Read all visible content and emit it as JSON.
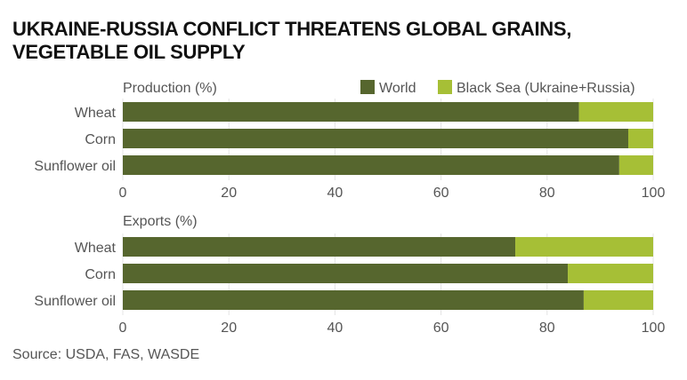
{
  "title_line1": "UKRAINE-RUSSIA CONFLICT THREATENS GLOBAL GRAINS,",
  "title_line2": "VEGETABLE OIL SUPPLY",
  "source": "Source: USDA, FAS, WASDE",
  "colors": {
    "World": "#56662e",
    "Black Sea (Ukraine+Russia)": "#a6bf36"
  },
  "chart_data": [
    {
      "type": "bar",
      "orientation": "horizontal",
      "stacked": true,
      "title": "Production (%)",
      "categories": [
        "Wheat",
        "Corn",
        "Sunflower oil"
      ],
      "series": [
        {
          "name": "World",
          "values": [
            86.0,
            95.3,
            93.6
          ]
        },
        {
          "name": "Black Sea (Ukraine+Russia)",
          "values": [
            14.0,
            4.7,
            6.4
          ]
        }
      ],
      "xlim": [
        0,
        100
      ],
      "xticks": [
        "0",
        "20",
        "40",
        "60",
        "80",
        "100"
      ],
      "grid": true,
      "legend": "top-right"
    },
    {
      "type": "bar",
      "orientation": "horizontal",
      "stacked": true,
      "title": "Exports (%)",
      "categories": [
        "Wheat",
        "Corn",
        "Sunflower oil"
      ],
      "series": [
        {
          "name": "World",
          "values": [
            74.0,
            83.9,
            86.9
          ]
        },
        {
          "name": "Black Sea (Ukraine+Russia)",
          "values": [
            26.0,
            16.1,
            13.1
          ]
        }
      ],
      "xlim": [
        0,
        100
      ],
      "xticks": [
        "0",
        "20",
        "40",
        "60",
        "80",
        "100"
      ],
      "grid": true
    }
  ]
}
